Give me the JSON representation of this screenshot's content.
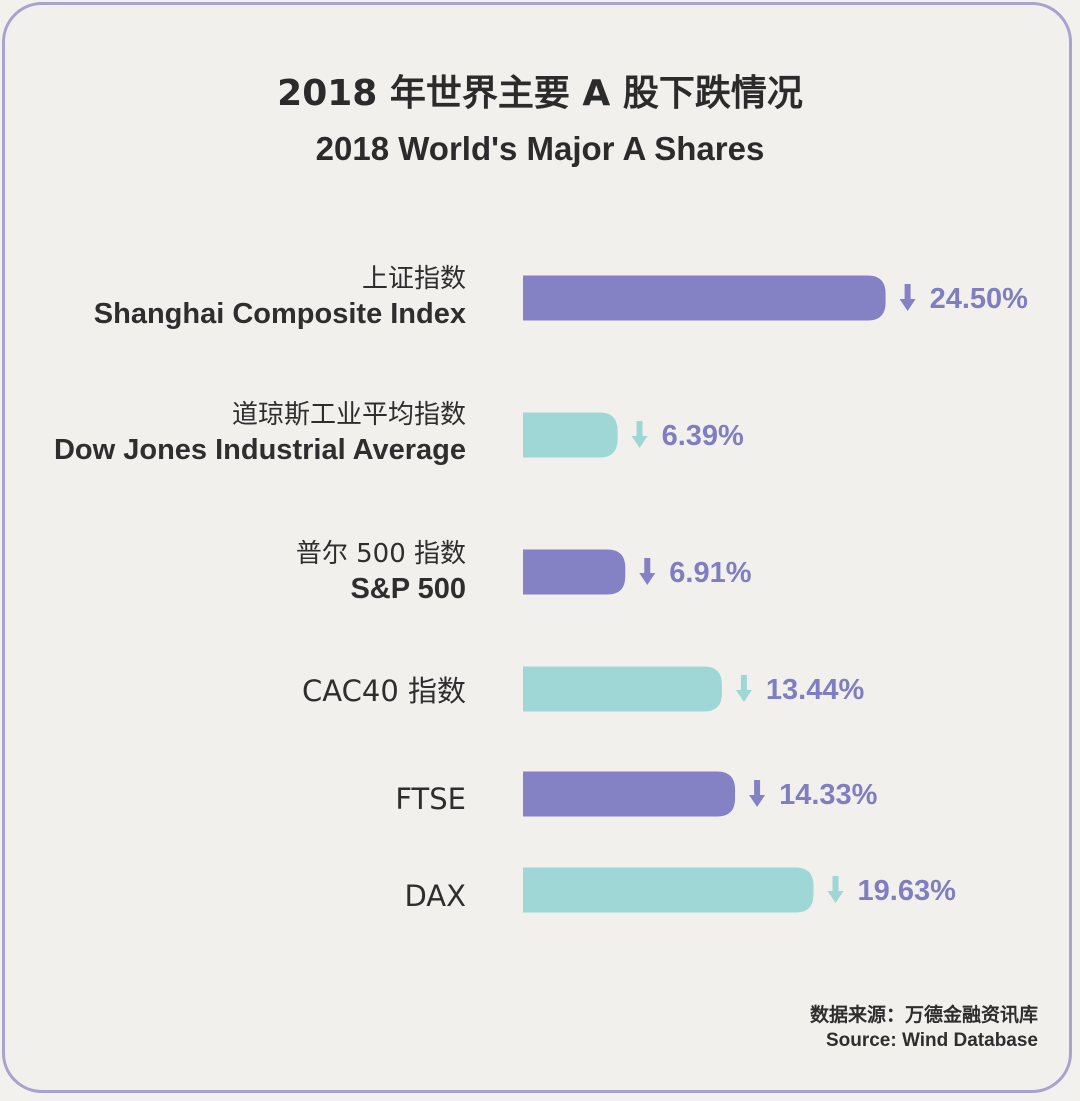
{
  "title_cn": "2018 年世界主要 A 股下跌情况",
  "title_en": "2018 World's Major A Shares",
  "source_cn": "数据来源：万德金融资讯库",
  "source_en": "Source: Wind Database",
  "colors": {
    "purple": "#8482c4",
    "teal": "#9fd6d6",
    "purple_text": "#7f7ec0",
    "frame": "#a8a2cf"
  },
  "chart_data": {
    "type": "bar",
    "orientation": "horizontal",
    "title": "2018 年世界主要 A 股下跌情况",
    "subtitle": "2018 World's Major A Shares",
    "categories": [
      {
        "cn": "上证指数",
        "en": "Shanghai Composite Index"
      },
      {
        "cn": "道琼斯工业平均指数",
        "en": "Dow Jones Industrial Average"
      },
      {
        "cn": "普尔 500 指数",
        "en": "S&P 500"
      },
      {
        "cn": "CAC40 指数",
        "en": ""
      },
      {
        "cn": "FTSE",
        "en": ""
      },
      {
        "cn": "DAX",
        "en": ""
      }
    ],
    "values": [
      24.5,
      6.39,
      6.91,
      13.44,
      14.33,
      19.63
    ],
    "value_labels": [
      "24.50%",
      "6.39%",
      "6.91%",
      "13.44%",
      "14.33%",
      "19.63%"
    ],
    "bar_colors": [
      "#8482c4",
      "#9fd6d6",
      "#8482c4",
      "#9fd6d6",
      "#8482c4",
      "#9fd6d6"
    ],
    "direction": "down",
    "grid": false,
    "legend": "none"
  }
}
